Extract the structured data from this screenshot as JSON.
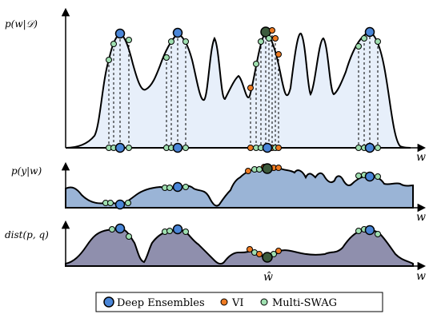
{
  "panels": [
    {
      "id": "posterior",
      "ylabel": "p(w|𝒟)",
      "xlabel": "w"
    },
    {
      "id": "predictive",
      "ylabel": "p(y|w)",
      "xlabel": "w"
    },
    {
      "id": "distance",
      "ylabel": "dist(p, q)",
      "xlabel": "w"
    }
  ],
  "bottom_marker": "ŵ",
  "legend": {
    "items": [
      {
        "label": "Deep Ensembles",
        "color": "#4a86d8"
      },
      {
        "label": "VI",
        "color": "#ee7b22"
      },
      {
        "label": "Multi-SWAG",
        "color": "#9fdfb0"
      }
    ]
  },
  "colors": {
    "posterior_fill": "#e7effa",
    "predictive_fill": "#9ab4d6",
    "distance_fill": "#8f8fad",
    "dark_center": "#3c5a3c"
  }
}
